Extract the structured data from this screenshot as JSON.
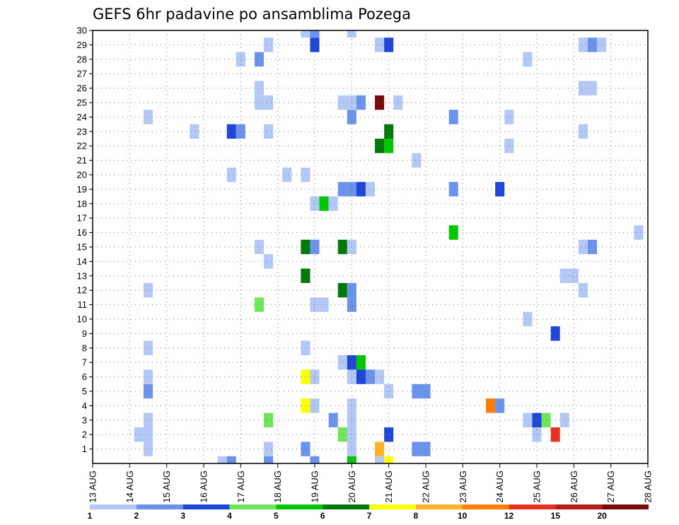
{
  "chart_data": {
    "type": "heatmap",
    "title": "GEFS 6hr padavine po ansamblima Pozega",
    "xlabel": "",
    "ylabel": "",
    "x_start": "2024-08-13",
    "x_tick_labels": [
      "13 AUG",
      "14 AUG",
      "15 AUG",
      "16 AUG",
      "17 AUG",
      "18 AUG",
      "19 AUG",
      "20 AUG",
      "21 AUG",
      "22 AUG",
      "23 AUG",
      "24 AUG",
      "25 AUG",
      "26 AUG",
      "27 AUG",
      "28 AUG"
    ],
    "y_tick_labels": [
      1,
      2,
      3,
      4,
      5,
      6,
      7,
      8,
      9,
      10,
      11,
      12,
      13,
      14,
      15,
      16,
      17,
      18,
      19,
      20,
      21,
      22,
      23,
      24,
      25,
      26,
      27,
      28,
      29,
      30
    ],
    "ylim": [
      0,
      30
    ],
    "xlim_days": [
      0,
      15
    ],
    "grid": true,
    "colorbar": {
      "labels": [
        "1",
        "2",
        "3",
        "4",
        "5",
        "6",
        "7",
        "8",
        "10",
        "12",
        "15",
        "20"
      ],
      "colors": [
        "#b4c8f5",
        "#6b93eb",
        "#1e46d7",
        "#6ee65a",
        "#00c800",
        "#00780a",
        "#ffff00",
        "#ffb428",
        "#ff7d00",
        "#e6321e",
        "#b41e14",
        "#780a0a"
      ]
    },
    "cells": [
      {
        "t": 1.5,
        "m": 1,
        "v": 1.5
      },
      {
        "t": 1.5,
        "m": 2,
        "v": 1.5
      },
      {
        "t": 1.25,
        "m": 2,
        "v": 1.5
      },
      {
        "t": 1.5,
        "m": 3,
        "v": 1.5
      },
      {
        "t": 1.5,
        "m": 5,
        "v": 2.5
      },
      {
        "t": 1.5,
        "m": 6,
        "v": 1.5
      },
      {
        "t": 1.5,
        "m": 8,
        "v": 1.5
      },
      {
        "t": 1.5,
        "m": 12,
        "v": 1.5
      },
      {
        "t": 1.5,
        "m": 24,
        "v": 1.5
      },
      {
        "t": 2.75,
        "m": 23,
        "v": 1.5
      },
      {
        "t": 3.5,
        "m": 0,
        "v": 1.5
      },
      {
        "t": 3.75,
        "m": 0,
        "v": 2.5
      },
      {
        "t": 3.75,
        "m": 20,
        "v": 1.5
      },
      {
        "t": 3.75,
        "m": 23,
        "v": 3.5
      },
      {
        "t": 4.0,
        "m": 23,
        "v": 2.5
      },
      {
        "t": 4.0,
        "m": 28,
        "v": 1.5
      },
      {
        "t": 4.5,
        "m": 15,
        "v": 1.5
      },
      {
        "t": 4.5,
        "m": 25,
        "v": 1.5
      },
      {
        "t": 4.5,
        "m": 26,
        "v": 1.5
      },
      {
        "t": 4.5,
        "m": 28,
        "v": 2.5
      },
      {
        "t": 4.5,
        "m": 11,
        "v": 4.5
      },
      {
        "t": 4.75,
        "m": 0,
        "v": 2.5
      },
      {
        "t": 4.75,
        "m": 1,
        "v": 1.5
      },
      {
        "t": 4.75,
        "m": 3,
        "v": 4.5
      },
      {
        "t": 4.75,
        "m": 14,
        "v": 1.5
      },
      {
        "t": 4.75,
        "m": 23,
        "v": 1.5
      },
      {
        "t": 4.75,
        "m": 25,
        "v": 1.5
      },
      {
        "t": 4.75,
        "m": 29,
        "v": 1.5
      },
      {
        "t": 5.25,
        "m": 20,
        "v": 1.5
      },
      {
        "t": 5.75,
        "m": 1,
        "v": 2.5
      },
      {
        "t": 5.75,
        "m": 4,
        "v": 7.5
      },
      {
        "t": 5.75,
        "m": 6,
        "v": 7.5
      },
      {
        "t": 5.75,
        "m": 8,
        "v": 1.5
      },
      {
        "t": 5.75,
        "m": 13,
        "v": 6.5
      },
      {
        "t": 5.75,
        "m": 15,
        "v": 6.5
      },
      {
        "t": 5.75,
        "m": 20,
        "v": 1.5
      },
      {
        "t": 5.75,
        "m": 30,
        "v": 1.5
      },
      {
        "t": 6.0,
        "m": 0,
        "v": 2.5
      },
      {
        "t": 6.0,
        "m": 4,
        "v": 1.5
      },
      {
        "t": 6.0,
        "m": 6,
        "v": 1.5
      },
      {
        "t": 6.0,
        "m": 11,
        "v": 1.5
      },
      {
        "t": 6.0,
        "m": 15,
        "v": 2.5
      },
      {
        "t": 6.0,
        "m": 18,
        "v": 1.5
      },
      {
        "t": 6.0,
        "m": 29,
        "v": 3.5
      },
      {
        "t": 6.0,
        "m": 30,
        "v": 2.5
      },
      {
        "t": 6.25,
        "m": 11,
        "v": 1.5
      },
      {
        "t": 6.25,
        "m": 18,
        "v": 5.5
      },
      {
        "t": 6.5,
        "m": 18,
        "v": 1.5
      },
      {
        "t": 6.5,
        "m": 3,
        "v": 2.5
      },
      {
        "t": 6.75,
        "m": 2,
        "v": 4.5
      },
      {
        "t": 6.75,
        "m": 7,
        "v": 1.5
      },
      {
        "t": 6.75,
        "m": 12,
        "v": 6.5
      },
      {
        "t": 6.75,
        "m": 15,
        "v": 6.5
      },
      {
        "t": 6.75,
        "m": 19,
        "v": 2.5
      },
      {
        "t": 6.75,
        "m": 25,
        "v": 1.5
      },
      {
        "t": 7.0,
        "m": 0,
        "v": 5.5
      },
      {
        "t": 7.0,
        "m": 1,
        "v": 1.5
      },
      {
        "t": 7.0,
        "m": 2,
        "v": 1.5
      },
      {
        "t": 7.0,
        "m": 3,
        "v": 1.5
      },
      {
        "t": 7.0,
        "m": 4,
        "v": 1.5
      },
      {
        "t": 7.0,
        "m": 6,
        "v": 1.5
      },
      {
        "t": 7.0,
        "m": 7,
        "v": 3.5
      },
      {
        "t": 7.0,
        "m": 11,
        "v": 2.5
      },
      {
        "t": 7.0,
        "m": 12,
        "v": 2.5
      },
      {
        "t": 7.0,
        "m": 15,
        "v": 1.5
      },
      {
        "t": 7.0,
        "m": 19,
        "v": 2.5
      },
      {
        "t": 7.0,
        "m": 24,
        "v": 2.5
      },
      {
        "t": 7.0,
        "m": 25,
        "v": 1.5
      },
      {
        "t": 7.0,
        "m": 30,
        "v": 1.5
      },
      {
        "t": 7.25,
        "m": 6,
        "v": 3.5
      },
      {
        "t": 7.25,
        "m": 7,
        "v": 5.5
      },
      {
        "t": 7.25,
        "m": 19,
        "v": 3.5
      },
      {
        "t": 7.25,
        "m": 25,
        "v": 2.5
      },
      {
        "t": 7.5,
        "m": 6,
        "v": 2.5
      },
      {
        "t": 7.5,
        "m": 19,
        "v": 1.5
      },
      {
        "t": 7.75,
        "m": 0,
        "v": 1.5
      },
      {
        "t": 7.75,
        "m": 1,
        "v": 9
      },
      {
        "t": 7.75,
        "m": 6,
        "v": 1.5
      },
      {
        "t": 7.75,
        "m": 22,
        "v": 6.5
      },
      {
        "t": 7.75,
        "m": 25,
        "v": 20
      },
      {
        "t": 7.75,
        "m": 29,
        "v": 1.5
      },
      {
        "t": 8.0,
        "m": 0,
        "v": 7.5
      },
      {
        "t": 8.0,
        "m": 2,
        "v": 3.5
      },
      {
        "t": 8.0,
        "m": 5,
        "v": 1.5
      },
      {
        "t": 8.0,
        "m": 22,
        "v": 5.5
      },
      {
        "t": 8.0,
        "m": 23,
        "v": 6.5
      },
      {
        "t": 8.0,
        "m": 29,
        "v": 3.5
      },
      {
        "t": 8.25,
        "m": 25,
        "v": 1.5
      },
      {
        "t": 8.75,
        "m": 5,
        "v": 2.5
      },
      {
        "t": 9.0,
        "m": 5,
        "v": 2.5
      },
      {
        "t": 9.0,
        "m": 1,
        "v": 2.5
      },
      {
        "t": 8.75,
        "m": 1,
        "v": 2.5
      },
      {
        "t": 8.75,
        "m": 21,
        "v": 1.5
      },
      {
        "t": 9.75,
        "m": 16,
        "v": 5.5
      },
      {
        "t": 9.75,
        "m": 19,
        "v": 2.5
      },
      {
        "t": 9.75,
        "m": 24,
        "v": 2.5
      },
      {
        "t": 10.75,
        "m": 4,
        "v": 10
      },
      {
        "t": 11.0,
        "m": 4,
        "v": 2.5
      },
      {
        "t": 11.0,
        "m": 19,
        "v": 3.5
      },
      {
        "t": 11.25,
        "m": 22,
        "v": 1.5
      },
      {
        "t": 11.25,
        "m": 24,
        "v": 1.5
      },
      {
        "t": 11.75,
        "m": 3,
        "v": 1.5
      },
      {
        "t": 11.75,
        "m": 10,
        "v": 1.5
      },
      {
        "t": 11.75,
        "m": 28,
        "v": 1.5
      },
      {
        "t": 12.0,
        "m": 2,
        "v": 1.5
      },
      {
        "t": 12.0,
        "m": 3,
        "v": 3.5
      },
      {
        "t": 12.25,
        "m": 3,
        "v": 4.5
      },
      {
        "t": 12.5,
        "m": 9,
        "v": 3.5
      },
      {
        "t": 12.5,
        "m": 2,
        "v": 12
      },
      {
        "t": 12.75,
        "m": 3,
        "v": 1.5
      },
      {
        "t": 12.75,
        "m": 13,
        "v": 1.5
      },
      {
        "t": 13.0,
        "m": 13,
        "v": 1.5
      },
      {
        "t": 13.25,
        "m": 12,
        "v": 1.5
      },
      {
        "t": 13.25,
        "m": 15,
        "v": 1.5
      },
      {
        "t": 13.25,
        "m": 23,
        "v": 1.5
      },
      {
        "t": 13.25,
        "m": 26,
        "v": 1.5
      },
      {
        "t": 13.5,
        "m": 26,
        "v": 1.5
      },
      {
        "t": 13.25,
        "m": 29,
        "v": 1.5
      },
      {
        "t": 13.5,
        "m": 29,
        "v": 2.5
      },
      {
        "t": 13.75,
        "m": 29,
        "v": 1.5
      },
      {
        "t": 13.5,
        "m": 15,
        "v": 2.5
      },
      {
        "t": 14.75,
        "m": 16,
        "v": 1.5
      }
    ]
  }
}
